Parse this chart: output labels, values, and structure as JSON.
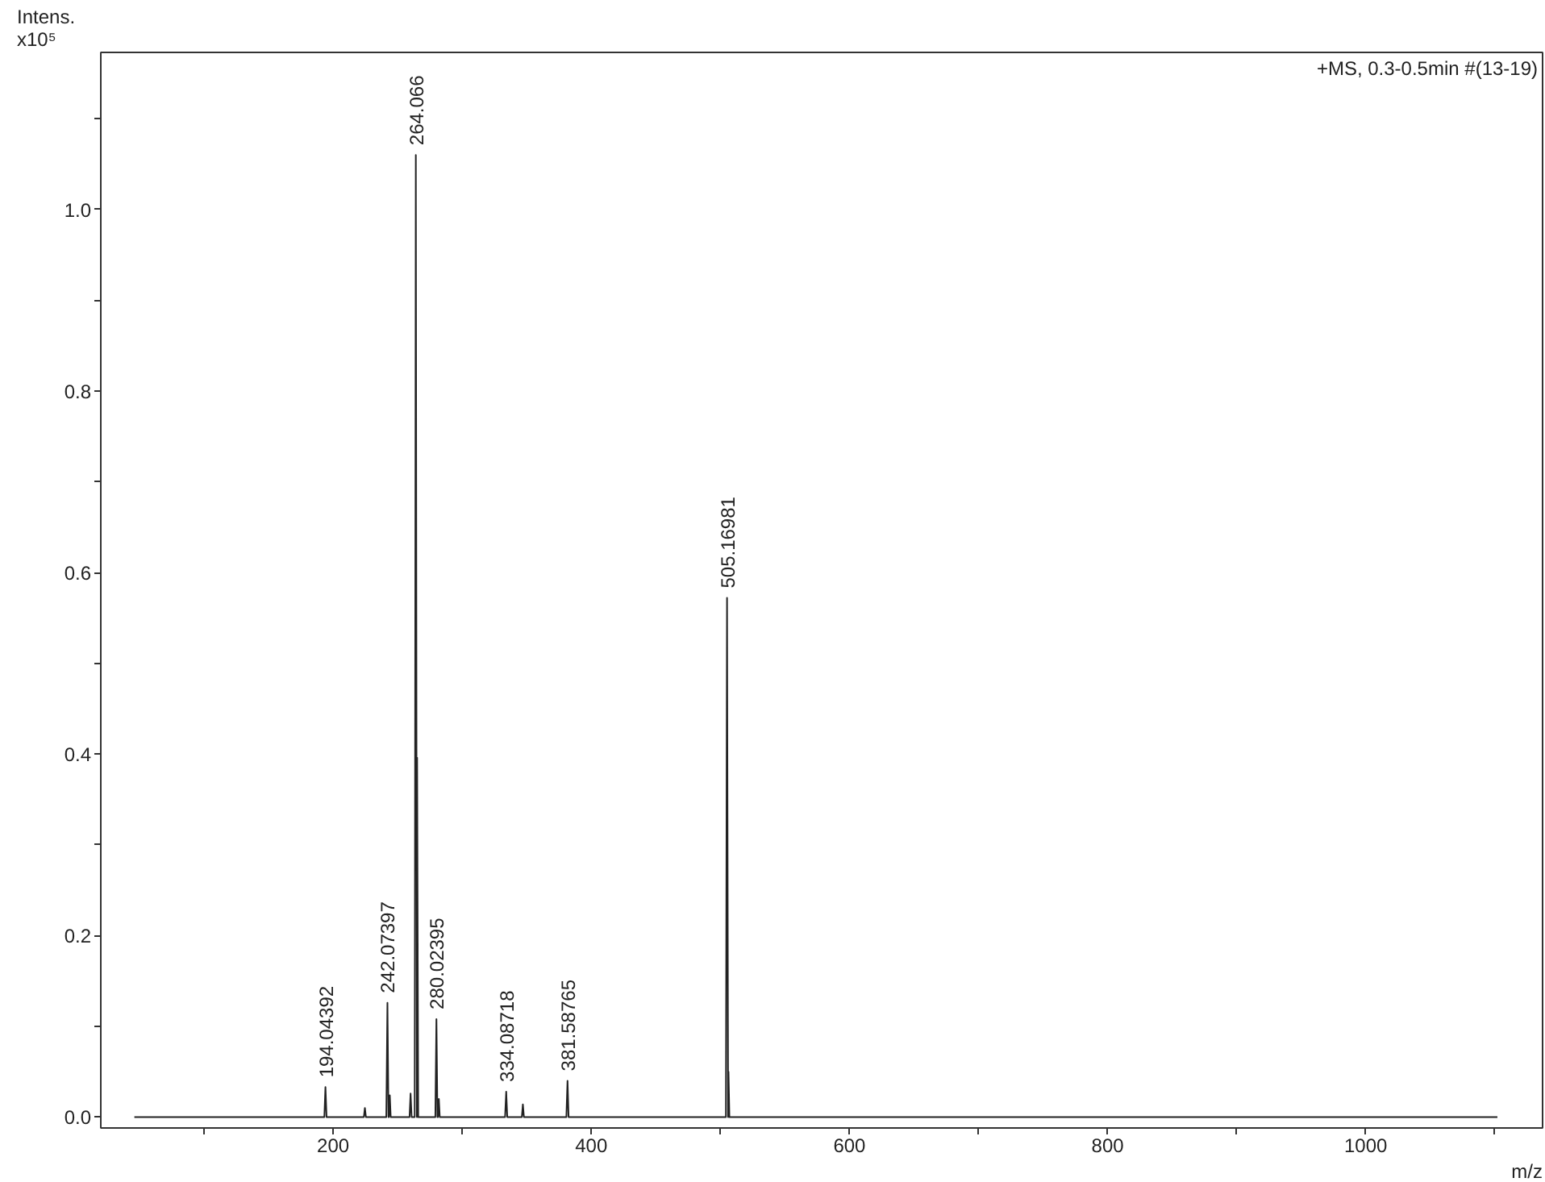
{
  "chart_data": {
    "type": "line",
    "title": "+MS, 0.3-0.5min #(13-19)",
    "xlabel": "m/z",
    "ylabel": "Intens.\nx10⁵",
    "x": [
      46,
      193.2,
      194.04392,
      194.9,
      223.8,
      224.6,
      225.4,
      241.2,
      242.07397,
      242.9,
      243.2,
      243.9,
      244.6,
      259.2,
      260,
      260.8,
      263.2,
      264.066,
      264.9,
      265.07,
      265.9,
      279.2,
      280.02395,
      280.8,
      281.2,
      281.9,
      282.6,
      333.2,
      334.08718,
      334.9,
      346.2,
      347,
      347.8,
      380.7,
      381.58765,
      382.4,
      504.3,
      505.16981,
      506,
      506.3,
      507,
      1102
    ],
    "series": [
      {
        "color": "#222222",
        "values": [
          0,
          0,
          0.033,
          0,
          0,
          0.01,
          0,
          0,
          0.126,
          0,
          0,
          0.024,
          0,
          0,
          0.026,
          0,
          0,
          1.06,
          0,
          0.396,
          0,
          0,
          0.108,
          0,
          0,
          0.02,
          0,
          0,
          0.028,
          0,
          0,
          0.014,
          0,
          0,
          0.04,
          0,
          0,
          0.572,
          0,
          0.05,
          0,
          0
        ]
      }
    ],
    "annotations": [
      {
        "text": "194.04392",
        "x": 194.04392,
        "y": 0.033
      },
      {
        "text": "242.07397",
        "x": 242.07397,
        "y": 0.126
      },
      {
        "text": "264.066",
        "x": 264.066,
        "y": 1.06
      },
      {
        "text": "280.02395",
        "x": 280.02395,
        "y": 0.108
      },
      {
        "text": "334.08718",
        "x": 334.08718,
        "y": 0.028
      },
      {
        "text": "381.58765",
        "x": 381.58765,
        "y": 0.04
      },
      {
        "text": "505.16981",
        "x": 505.16981,
        "y": 0.572
      }
    ],
    "xlim": [
      20,
      1137
    ],
    "xticks": [
      {
        "value": 100,
        "label": null
      },
      200,
      {
        "value": 300,
        "label": null
      },
      400,
      {
        "value": 500,
        "label": null
      },
      600,
      {
        "value": 700,
        "label": null
      },
      800,
      {
        "value": 900,
        "label": null
      },
      1000,
      {
        "value": 1100,
        "label": null
      }
    ],
    "ylim": [
      -0.012,
      1.173
    ],
    "yticks": [
      {
        "value": 0,
        "label": "0.0"
      },
      {
        "value": 0.1,
        "label": null
      },
      0.2,
      {
        "value": 0.3,
        "label": null
      },
      0.4,
      {
        "value": 0.5,
        "label": null
      },
      0.6,
      {
        "value": 0.7,
        "label": null
      },
      0.8,
      {
        "value": 0.9,
        "label": null
      },
      {
        "value": 1,
        "label": "1.0"
      },
      {
        "value": 1.1,
        "label": null
      }
    ],
    "grid": false,
    "marker": "none",
    "line_style": "solid"
  }
}
